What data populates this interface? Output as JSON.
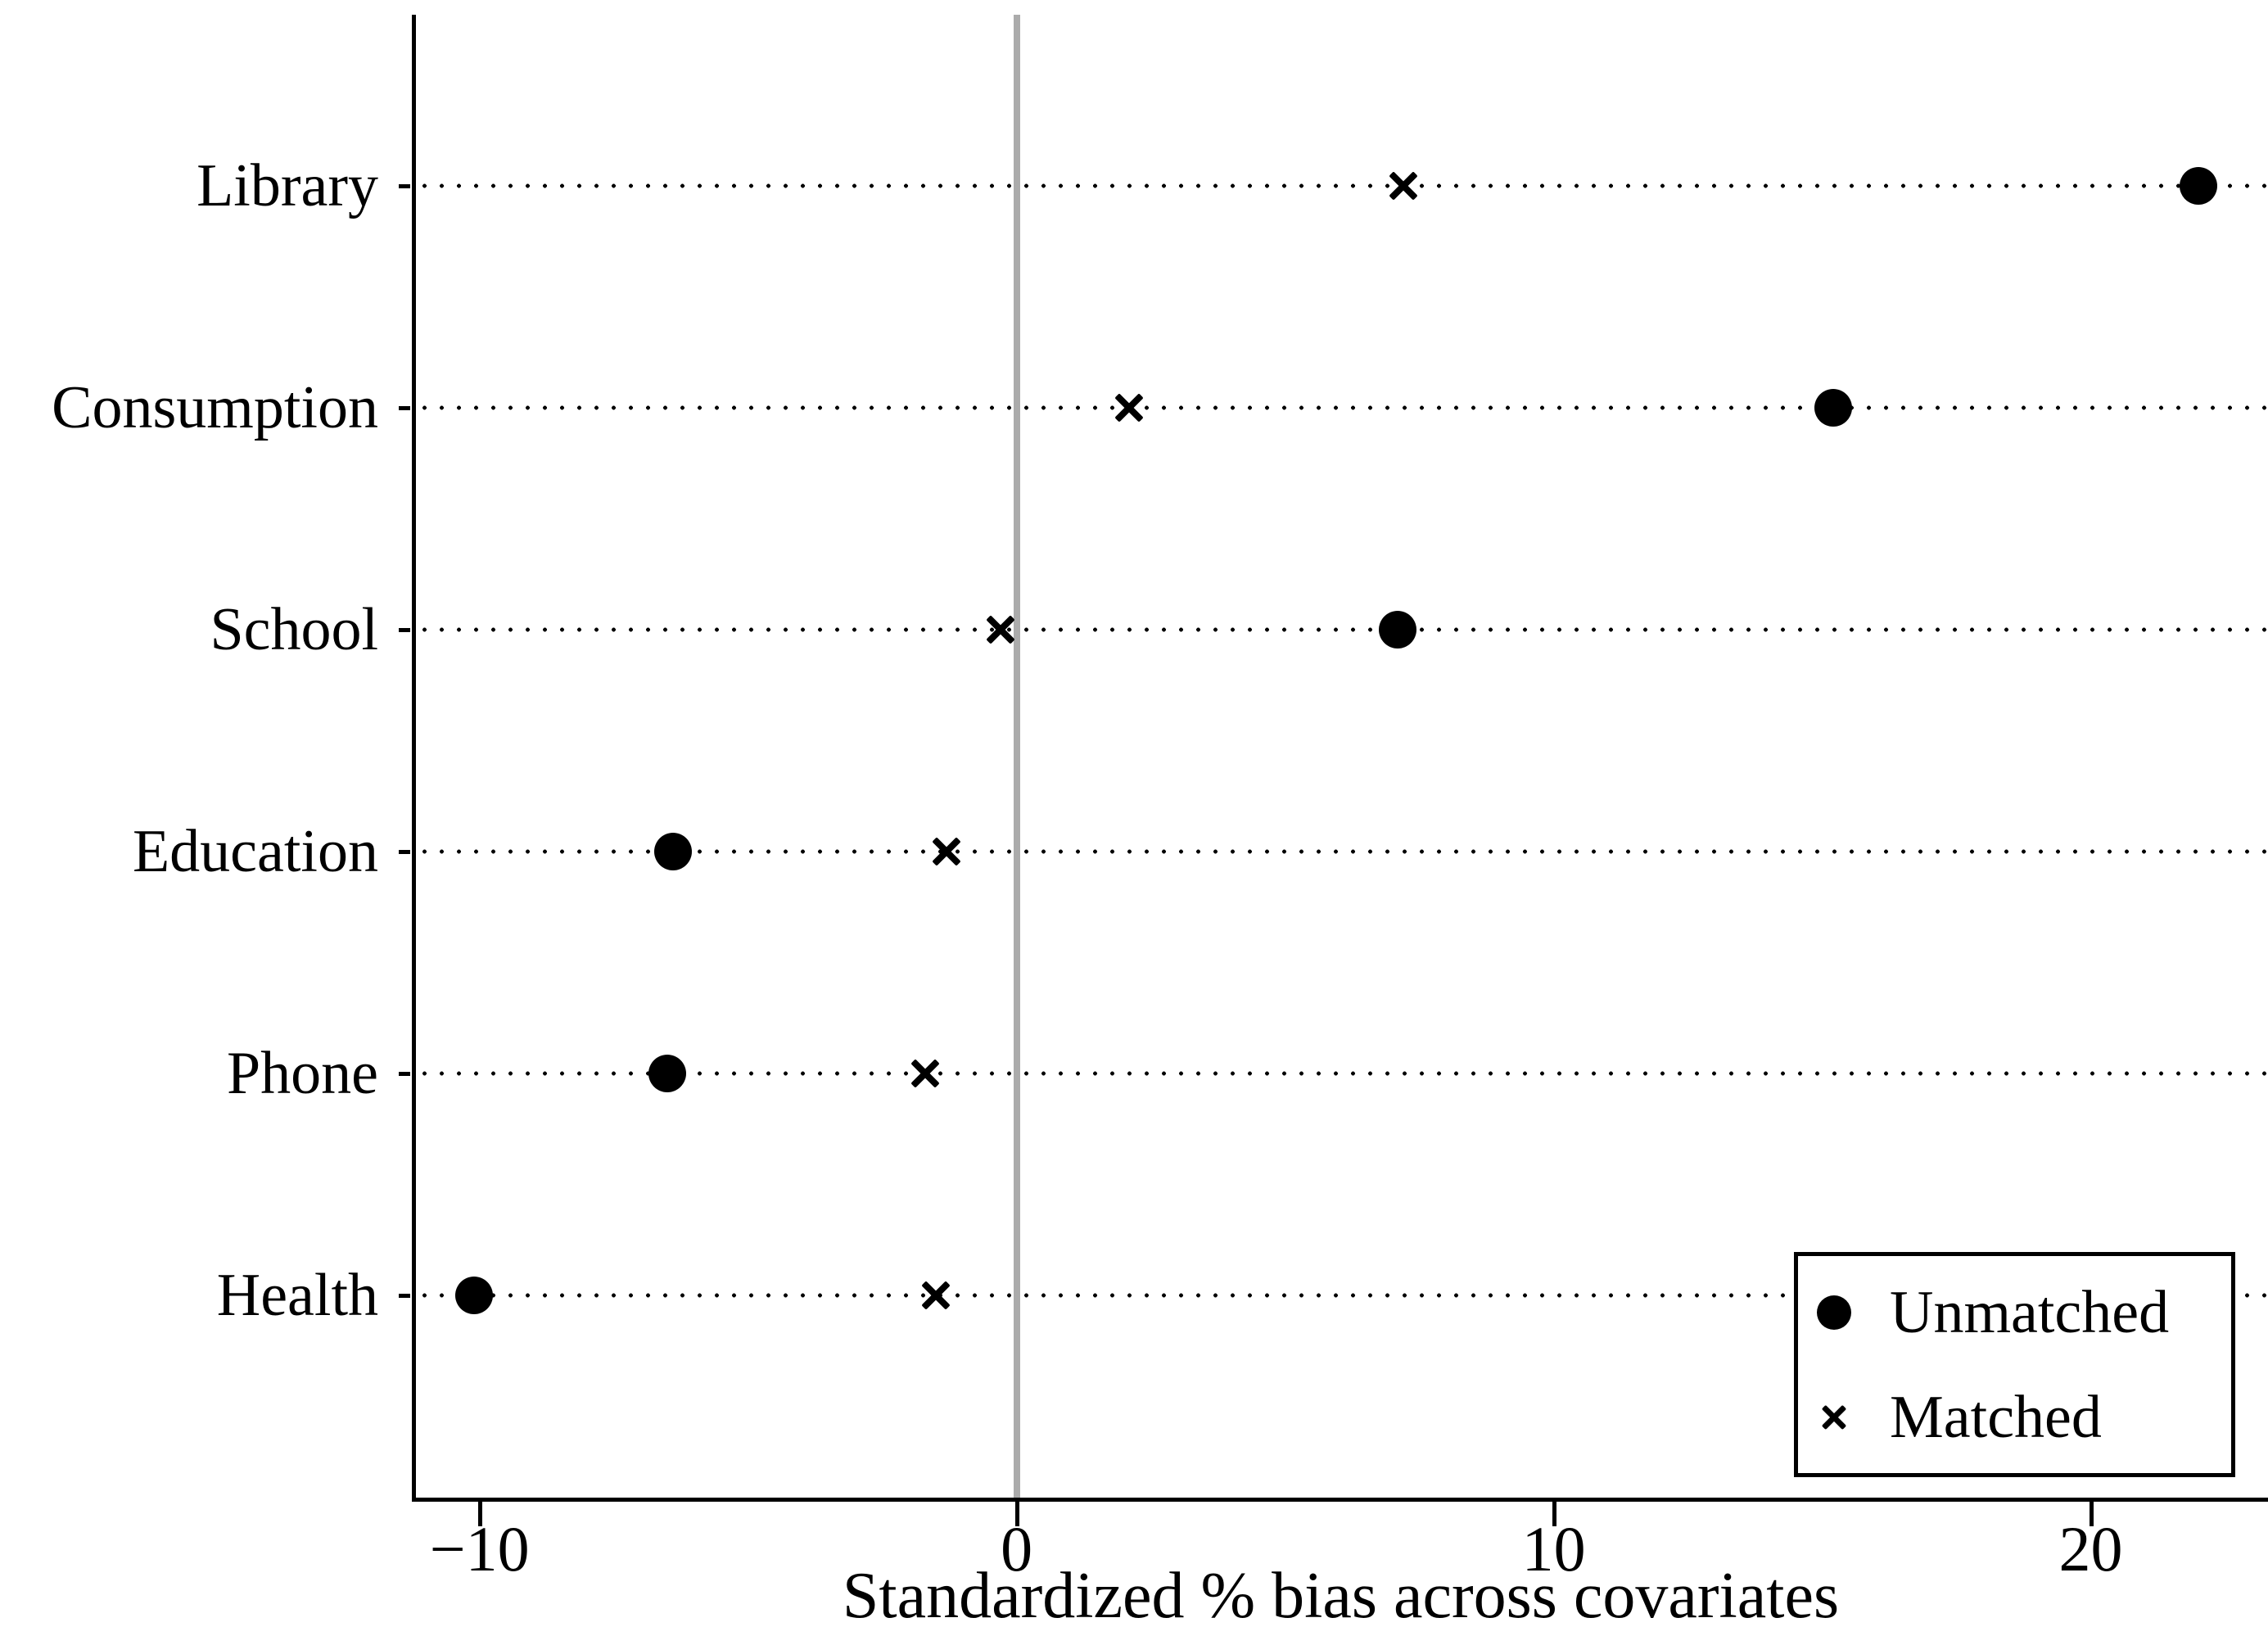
{
  "figure": {
    "background": "#ffffff",
    "axis_color": "#000000",
    "marker_color": "#000000",
    "zero_line_color": "#ababab"
  },
  "chart_data": {
    "type": "scatter",
    "variant": "horizontal-dot-plot",
    "title": "",
    "xlabel": "Standardized % bias across covariates",
    "ylabel": "",
    "categories": [
      "Library",
      "Consumption",
      "School",
      "Education",
      "Phone",
      "Health"
    ],
    "series": [
      {
        "name": "Unmatched",
        "marker": "circle",
        "values": [
          22.0,
          15.2,
          7.1,
          -6.4,
          -6.5,
          -10.1
        ]
      },
      {
        "name": "Matched",
        "marker": "x",
        "values": [
          7.2,
          2.1,
          -0.3,
          -1.3,
          -1.7,
          -1.5
        ]
      }
    ],
    "xticks": [
      -10,
      0,
      10,
      20
    ],
    "xtick_labels": [
      "−10",
      "0",
      "10",
      "20"
    ],
    "xlim": [
      -11.23,
      23.3
    ],
    "grid": "dotted-horizontal-rows",
    "reference_line_x": 0,
    "legend": {
      "position": "bottom-right",
      "entries": [
        {
          "marker": "circle",
          "label": "Unmatched"
        },
        {
          "marker": "x",
          "label": "Matched"
        }
      ]
    }
  }
}
